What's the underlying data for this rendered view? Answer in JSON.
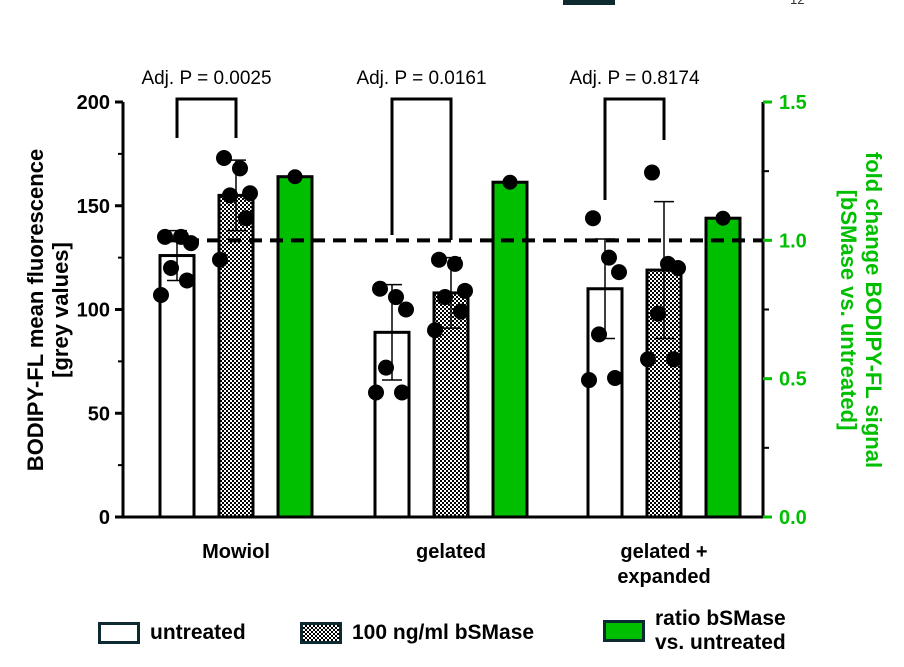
{
  "top_fragment": "12",
  "colors": {
    "green": "#00bf00",
    "black": "#000000",
    "legend_border": "#0d2a30"
  },
  "chart_data": {
    "type": "bar",
    "categories": [
      "Mowiol",
      "gelated",
      "gelated +\nexpanded"
    ],
    "ylabel": "BODIPY-FL mean fluorescence\n[grey values]",
    "y2label": "fold change BODIPY-FL signal\n[bSMase vs. untreated]",
    "ylim": [
      0,
      200
    ],
    "y2lim": [
      0.0,
      1.5
    ],
    "yticks": [
      0,
      50,
      100,
      150,
      200
    ],
    "y2ticks": [
      0.0,
      0.5,
      1.0,
      1.5
    ],
    "y2ticks_labels": [
      "0.0",
      "0.5",
      "1.0",
      "1.5"
    ],
    "reference_line_y2": 1.0,
    "series": [
      {
        "name": "untreated",
        "axis": "left",
        "fill": "white",
        "values": [
          126,
          89,
          110
        ],
        "errors": [
          12,
          23,
          24
        ],
        "points": [
          [
            135,
            135,
            132,
            120,
            114,
            107
          ],
          [
            110,
            106,
            100,
            72,
            60,
            60
          ],
          [
            144,
            125,
            118,
            88,
            67,
            66
          ]
        ]
      },
      {
        "name": "100 ng/ml bSMase",
        "axis": "left",
        "fill": "checker",
        "values": [
          155,
          108,
          119
        ],
        "errors": [
          17,
          17,
          33
        ],
        "points": [
          [
            173,
            168,
            156,
            155,
            144,
            124
          ],
          [
            124,
            122,
            109,
            106,
            99,
            90
          ],
          [
            166,
            122,
            120,
            98,
            76,
            76
          ]
        ]
      },
      {
        "name": "ratio bSMase\nvs. untreated",
        "axis": "right",
        "fill": "green",
        "values": [
          1.23,
          1.21,
          1.08
        ],
        "points": [
          1.23,
          1.21,
          1.08
        ]
      }
    ],
    "annotations": [
      {
        "text": "Adj. P = 0.0025",
        "group": 0
      },
      {
        "text": "Adj. P = 0.0161",
        "group": 1
      },
      {
        "text": "Adj. P = 0.8174",
        "group": 2
      }
    ]
  },
  "legend": [
    {
      "key": "untreated",
      "label": "untreated"
    },
    {
      "key": "bsmase",
      "label": "100 ng/ml bSMase"
    },
    {
      "key": "ratio",
      "label": "ratio bSMase\nvs. untreated"
    }
  ]
}
